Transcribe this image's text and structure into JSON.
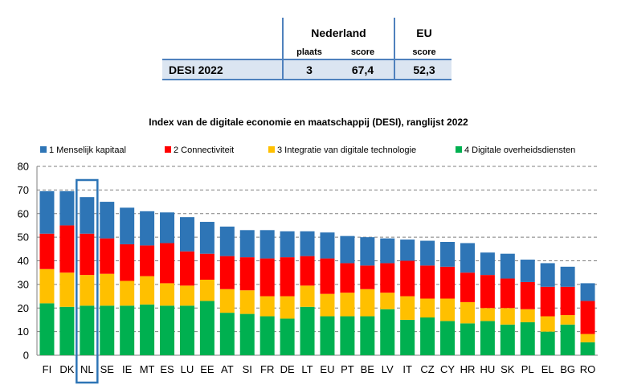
{
  "summary": {
    "headers": {
      "country": "Nederland",
      "region": "EU"
    },
    "subheaders": {
      "place": "plaats",
      "score_nl": "score",
      "score_eu": "score"
    },
    "row": {
      "label": "DESI 2022",
      "place": "3",
      "score_nl": "67,4",
      "score_eu": "52,3"
    }
  },
  "chart_data": {
    "type": "bar",
    "stacked": true,
    "title": "Index van de digitale economie en maatschappij (DESI), ranglijst 2022",
    "categories": [
      "FI",
      "DK",
      "NL",
      "SE",
      "IE",
      "MT",
      "ES",
      "LU",
      "EE",
      "AT",
      "SI",
      "FR",
      "DE",
      "LT",
      "EU",
      "PT",
      "BE",
      "LV",
      "IT",
      "CZ",
      "CY",
      "HR",
      "HU",
      "SK",
      "PL",
      "EL",
      "BG",
      "RO"
    ],
    "highlight": "NL",
    "ylim": [
      0,
      80
    ],
    "yticks": [
      0,
      10,
      20,
      30,
      40,
      50,
      60,
      70,
      80
    ],
    "grid": true,
    "legend_position": "top",
    "series": [
      {
        "name": "4 Digitale overheidsdiensten",
        "color": "#00b050",
        "values": [
          22,
          20.5,
          21,
          21,
          21,
          21.5,
          21,
          21,
          23,
          18,
          17.5,
          16.5,
          15.5,
          20.5,
          16.5,
          16.5,
          16.5,
          19.5,
          15,
          16,
          14.5,
          13.5,
          14.5,
          13,
          14,
          10,
          13,
          5.5
        ]
      },
      {
        "name": "3 Integratie van digitale technologie",
        "color": "#ffc000",
        "values": [
          14.5,
          14.5,
          13,
          13.5,
          10.5,
          12,
          9.5,
          8.5,
          9,
          10,
          10,
          8.5,
          9.5,
          9,
          9.5,
          10,
          11.5,
          7,
          10,
          8,
          9.5,
          9,
          5.5,
          7,
          5.5,
          6.5,
          4,
          3.5
        ]
      },
      {
        "name": "2 Connectiviteit",
        "color": "#ff0000",
        "values": [
          15,
          20,
          17.5,
          15,
          15.5,
          13,
          17,
          14.5,
          11,
          14,
          14,
          16,
          16.5,
          12.5,
          15,
          12.5,
          10,
          12.5,
          15,
          14,
          13.5,
          12.5,
          14,
          12.5,
          11.5,
          12.5,
          12,
          14
        ]
      },
      {
        "name": "1 Menselijk kapitaal",
        "color": "#2e75b6",
        "values": [
          18,
          14.5,
          15.5,
          15.5,
          15.5,
          14.5,
          13,
          14.5,
          13.5,
          12.5,
          11.5,
          12,
          11,
          10.5,
          11,
          11.5,
          12,
          10.5,
          9,
          10.5,
          10.5,
          12.5,
          9.5,
          10.5,
          9.5,
          10,
          8.5,
          7.5
        ]
      }
    ]
  }
}
